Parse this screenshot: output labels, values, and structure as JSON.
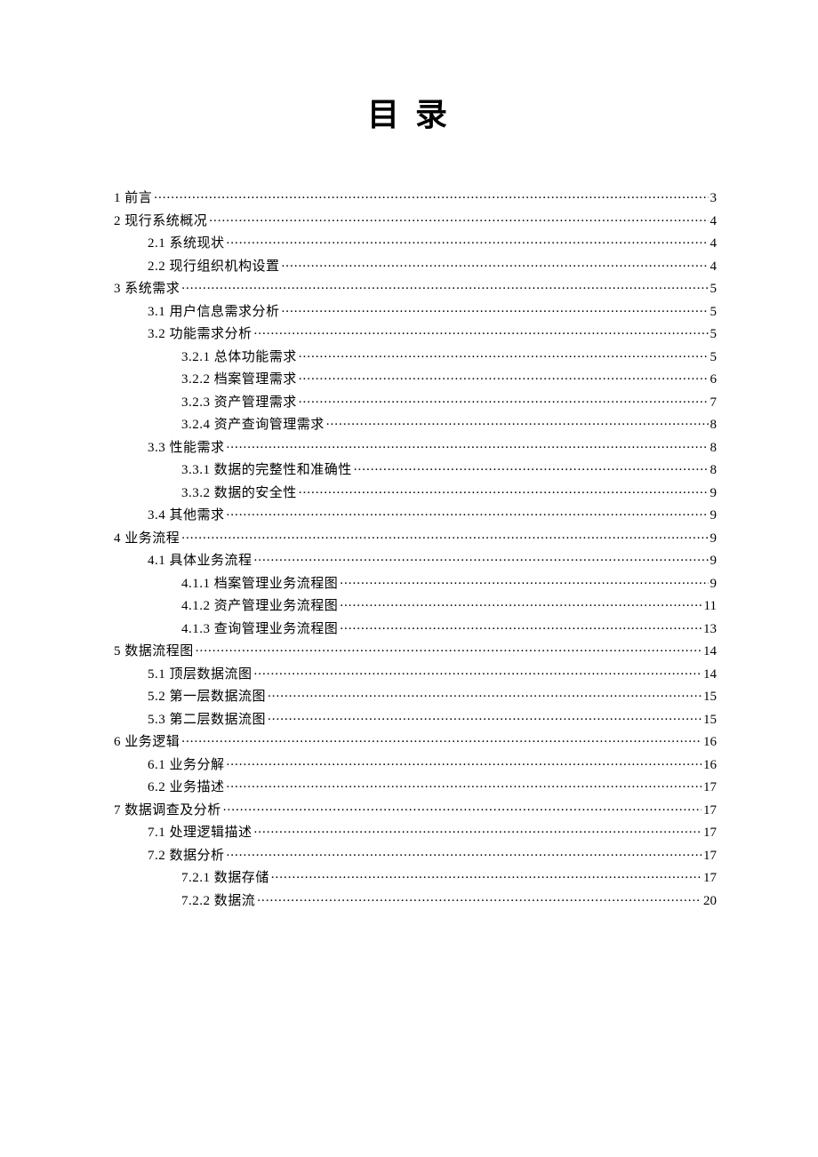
{
  "title": "目录",
  "text_color": "#000000",
  "background_color": "#ffffff",
  "title_fontsize": 36,
  "body_fontsize": 15,
  "entries": [
    {
      "level": 1,
      "label": "1  前言",
      "page": "3"
    },
    {
      "level": 1,
      "label": "2  现行系统概况",
      "page": "4"
    },
    {
      "level": 2,
      "label": "2.1  系统现状",
      "page": "4"
    },
    {
      "level": 2,
      "label": "2.2  现行组织机构设置",
      "page": "4"
    },
    {
      "level": 1,
      "label": "3  系统需求",
      "page": "5"
    },
    {
      "level": 2,
      "label": "3.1  用户信息需求分析",
      "page": "5"
    },
    {
      "level": 2,
      "label": "3.2  功能需求分析",
      "page": "5"
    },
    {
      "level": 3,
      "label": "3.2.1  总体功能需求",
      "page": "5"
    },
    {
      "level": 3,
      "label": "3.2.2  档案管理需求",
      "page": "6"
    },
    {
      "level": 3,
      "label": "3.2.3  资产管理需求",
      "page": "7"
    },
    {
      "level": 3,
      "label": "3.2.4  资产查询管理需求",
      "page": "8"
    },
    {
      "level": 2,
      "label": "3.3  性能需求",
      "page": "8"
    },
    {
      "level": 3,
      "label": "3.3.1  数据的完整性和准确性",
      "page": "8"
    },
    {
      "level": 3,
      "label": "3.3.2  数据的安全性",
      "page": "9"
    },
    {
      "level": 2,
      "label": "3.4  其他需求",
      "page": "9"
    },
    {
      "level": 1,
      "label": "4  业务流程",
      "page": "9"
    },
    {
      "level": 2,
      "label": "4.1  具体业务流程",
      "page": "9"
    },
    {
      "level": 3,
      "label": "4.1.1  档案管理业务流程图",
      "page": "9"
    },
    {
      "level": 3,
      "label": "4.1.2  资产管理业务流程图",
      "page": "11"
    },
    {
      "level": 3,
      "label": "4.1.3  查询管理业务流程图",
      "page": "13"
    },
    {
      "level": 1,
      "label": "5  数据流程图",
      "page": "14"
    },
    {
      "level": 2,
      "label": "5.1  顶层数据流图",
      "page": "14"
    },
    {
      "level": 2,
      "label": "5.2  第一层数据流图",
      "page": "15"
    },
    {
      "level": 2,
      "label": "5.3  第二层数据流图",
      "page": "15"
    },
    {
      "level": 1,
      "label": "6  业务逻辑",
      "page": "16"
    },
    {
      "level": 2,
      "label": "6.1  业务分解",
      "page": "16"
    },
    {
      "level": 2,
      "label": "6.2  业务描述",
      "page": "17"
    },
    {
      "level": 1,
      "label": "7  数据调查及分析",
      "page": "17"
    },
    {
      "level": 2,
      "label": "7.1  处理逻辑描述",
      "page": "17"
    },
    {
      "level": 2,
      "label": "7.2  数据分析",
      "page": "17"
    },
    {
      "level": 3,
      "label": "7.2.1  数据存储",
      "page": "17"
    },
    {
      "level": 3,
      "label": "7.2.2  数据流",
      "page": "20"
    }
  ]
}
